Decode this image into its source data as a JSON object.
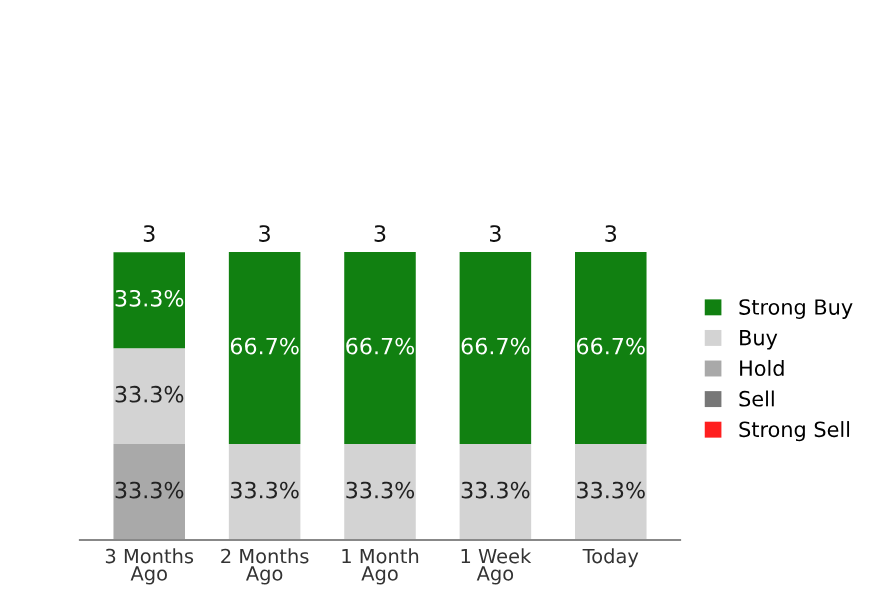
{
  "chart_data": {
    "type": "bar",
    "stacked": true,
    "categories": [
      "3 Months\nAgo",
      "2 Months\nAgo",
      "1 Month\nAgo",
      "1 Week\nAgo",
      "Today"
    ],
    "series": [
      {
        "name": "Strong Sell",
        "color": "#ff1f1f",
        "values": [
          null,
          null,
          null,
          null,
          null
        ]
      },
      {
        "name": "Sell",
        "color": "#777777",
        "values": [
          null,
          null,
          null,
          null,
          null
        ]
      },
      {
        "name": "Hold",
        "color": "#a9a9a9",
        "values": [
          33.3,
          null,
          null,
          null,
          null
        ],
        "value_labels": [
          "33.3%",
          null,
          null,
          null,
          null
        ]
      },
      {
        "name": "Buy",
        "color": "#d3d3d3",
        "values": [
          33.3,
          33.3,
          33.3,
          33.3,
          33.3
        ],
        "value_labels": [
          "33.3%",
          "33.3%",
          "33.3%",
          "33.3%",
          "33.3%"
        ]
      },
      {
        "name": "Strong Buy",
        "color": "#118011",
        "values": [
          33.3,
          66.7,
          66.7,
          66.7,
          66.7
        ],
        "value_labels": [
          "33.3%",
          "66.7%",
          "66.7%",
          "66.7%",
          "66.7%"
        ]
      }
    ],
    "annotations": [
      {
        "text": "3",
        "x": "3 Months\nAgo",
        "y": 100
      },
      {
        "text": "3",
        "x": "2 Months\nAgo",
        "y": 100
      },
      {
        "text": "3",
        "x": "1 Month\nAgo",
        "y": 100
      },
      {
        "text": "3",
        "x": "1 Week\nAgo",
        "y": 100
      },
      {
        "text": "3",
        "x": "Today",
        "y": 100
      }
    ],
    "legend": "right",
    "grid": false
  }
}
